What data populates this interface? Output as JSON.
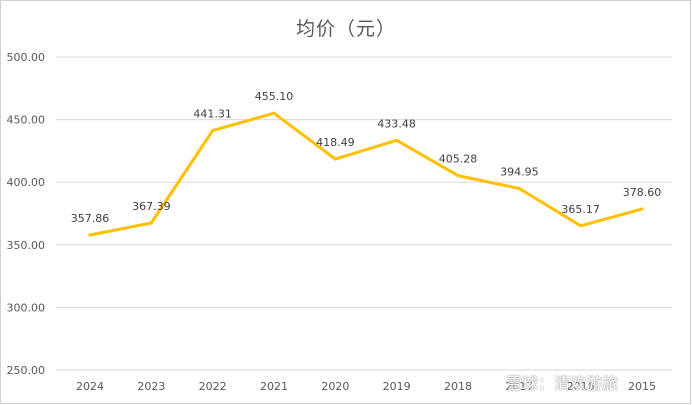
{
  "chart_data": {
    "type": "line",
    "title": "均价（元）",
    "categories": [
      "2024",
      "2023",
      "2022",
      "2021",
      "2020",
      "2019",
      "2018",
      "2017",
      "2016",
      "2015"
    ],
    "series": [
      {
        "name": "均价（元）",
        "values": [
          357.86,
          367.39,
          441.31,
          455.1,
          418.49,
          433.48,
          405.28,
          394.95,
          365.17,
          378.6
        ],
        "labels": [
          "357.86",
          "367.39",
          "441.31",
          "455.10",
          "418.49",
          "433.48",
          "405.28",
          "394.95",
          "365.17",
          "378.60"
        ],
        "color": "#FFC000"
      }
    ],
    "ylim": [
      250,
      500
    ],
    "yticks": [
      250,
      300,
      350,
      400,
      450,
      500
    ],
    "ytick_labels": [
      "250.00",
      "300.00",
      "350.00",
      "400.00",
      "450.00",
      "500.00"
    ],
    "xlabel": "",
    "ylabel": "",
    "grid": true,
    "legend": "none"
  },
  "watermark": "雪球：清欢游旅"
}
